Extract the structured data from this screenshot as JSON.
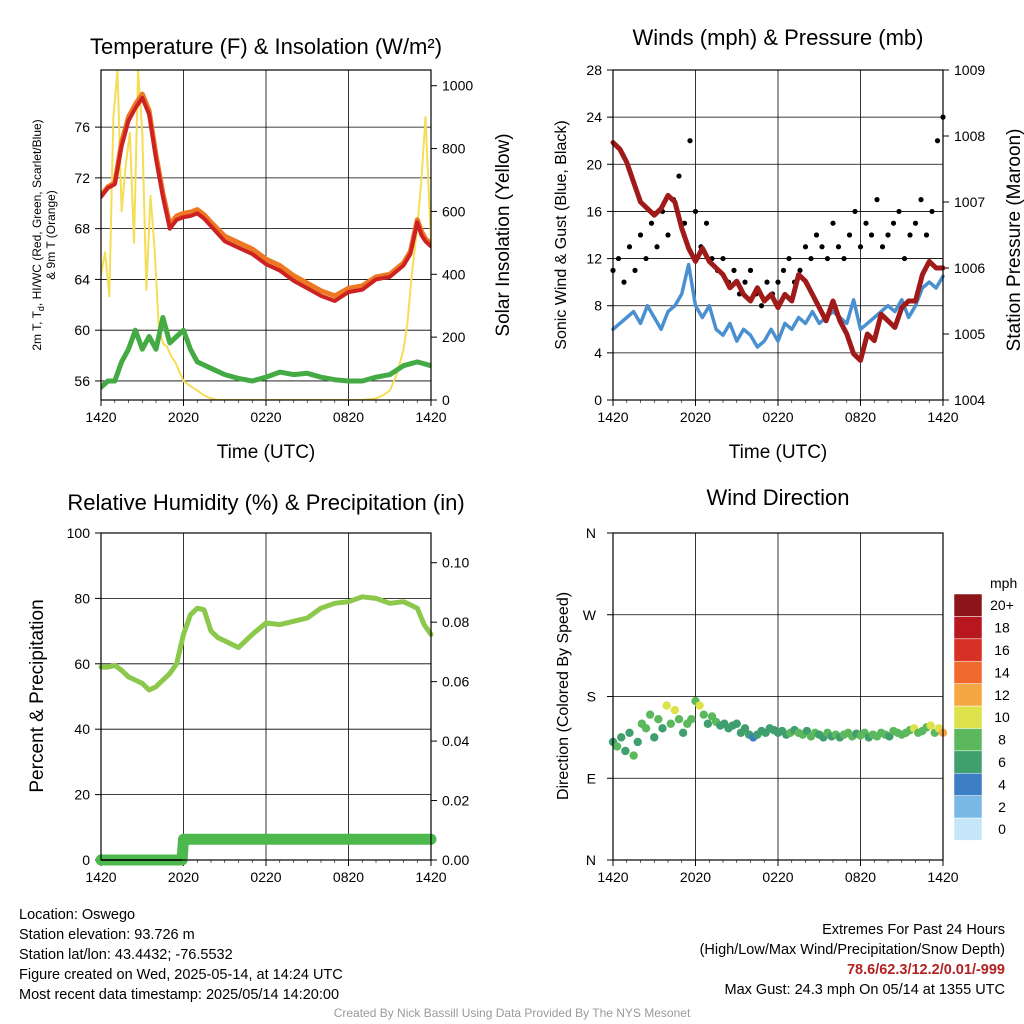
{
  "chart_data": [
    {
      "type": "line",
      "title": "Temperature (F) & Insolation (W/m²)",
      "xlabel": "Time (UTC)",
      "ylabel": "2m T, Td, HI/WC (Red, Green, Scarlet/Blue) & 9m T (Orange)",
      "ylabel_line1": "2m T, T",
      "ylabel_sub": "d",
      "ylabel_line1b": ", HI/WC (Red, Green, Scarlet/Blue)",
      "ylabel_line2": "& 9m T (Orange)",
      "y2label": "Solar Insolation (Yellow)",
      "x_ticks": [
        "1420",
        "2020",
        "0220",
        "0820",
        "1420"
      ],
      "ylim": [
        54.5,
        80.5
      ],
      "y_ticks": [
        56,
        60,
        64,
        68,
        72,
        76
      ],
      "y2lim": [
        0,
        1050
      ],
      "y2_ticks": [
        0,
        200,
        400,
        600,
        800,
        1000
      ],
      "series": [
        {
          "color": "#cc2222",
          "x": [
            0,
            0.5,
            1,
            1.5,
            2,
            2.5,
            3,
            3.5,
            4,
            4.5,
            5,
            5.5,
            6,
            6.5,
            7,
            7.5,
            8,
            9,
            10,
            11,
            12,
            13,
            14,
            15,
            16,
            17,
            18,
            19,
            20,
            21,
            22,
            22.5,
            23,
            23.3,
            23.6,
            24
          ],
          "values": [
            70.5,
            71.2,
            71.5,
            74.5,
            76.5,
            77.5,
            78.3,
            77,
            73.5,
            70.5,
            68,
            68.7,
            68.9,
            69,
            69.2,
            68.8,
            68.2,
            67,
            66.5,
            66,
            65.2,
            64.7,
            63.9,
            63.3,
            62.7,
            62.3,
            63,
            63.2,
            64,
            64.2,
            65.1,
            66,
            68.5,
            67.5,
            67,
            66.6
          ]
        },
        {
          "color": "#ee7722",
          "x": [
            0,
            0.5,
            1,
            1.5,
            2,
            2.5,
            3,
            3.5,
            4,
            4.5,
            5,
            5.5,
            6,
            6.5,
            7,
            7.5,
            8,
            9,
            10,
            11,
            12,
            13,
            14,
            15,
            16,
            17,
            18,
            19,
            20,
            21,
            22,
            22.5,
            23,
            23.3,
            23.6,
            24
          ],
          "values": [
            70.6,
            71.3,
            71.6,
            74.8,
            76.8,
            77.8,
            78.6,
            77.3,
            73.8,
            70.8,
            68.3,
            69,
            69.2,
            69.3,
            69.5,
            69.1,
            68.5,
            67.4,
            66.9,
            66.4,
            65.6,
            65.1,
            64.3,
            63.7,
            63.1,
            62.7,
            63.3,
            63.5,
            64.2,
            64.4,
            65.3,
            66.2,
            68.7,
            67.8,
            67.2,
            66.8
          ]
        },
        {
          "color": "#44aa44",
          "x": [
            0,
            0.5,
            1,
            1.5,
            2,
            2.5,
            3,
            3.5,
            4,
            4.5,
            5,
            5.5,
            6,
            6.5,
            7,
            8,
            9,
            10,
            11,
            12,
            13,
            14,
            15,
            16,
            17,
            18,
            19,
            20,
            21,
            22,
            23,
            24
          ],
          "values": [
            55.5,
            56,
            56,
            57.5,
            58.5,
            60,
            58.5,
            59.5,
            58.5,
            61,
            59,
            59.5,
            60,
            58.5,
            57.5,
            57,
            56.5,
            56.2,
            56,
            56.3,
            56.7,
            56.5,
            56.6,
            56.3,
            56.1,
            56,
            56,
            56.3,
            56.5,
            57.2,
            57.5,
            57.2
          ]
        },
        {
          "color": "#f5dd55",
          "x": [
            0,
            0.3,
            0.6,
            0.9,
            1.2,
            1.5,
            1.8,
            2.1,
            2.4,
            2.7,
            3.0,
            3.3,
            3.6,
            3.9,
            4.2,
            4.5,
            4.8,
            5.1,
            5.4,
            5.7,
            6.0,
            6.5,
            7,
            7.5,
            8,
            8.5,
            9,
            10,
            11,
            12,
            13,
            14,
            15,
            16,
            17,
            18,
            19,
            20,
            20.5,
            21,
            21.5,
            22,
            22.3,
            22.6,
            23,
            23.3,
            23.6,
            24
          ],
          "values": [
            400,
            470,
            330,
            900,
            1050,
            600,
            750,
            850,
            500,
            1050,
            850,
            350,
            650,
            480,
            230,
            180,
            170,
            140,
            120,
            90,
            60,
            45,
            30,
            15,
            5,
            0,
            0,
            0,
            0,
            0,
            0,
            0,
            0,
            0,
            0,
            0,
            0,
            5,
            15,
            30,
            80,
            160,
            250,
            400,
            550,
            700,
            900,
            500
          ]
        }
      ]
    },
    {
      "type": "scatter",
      "title": "Winds (mph) & Pressure (mb)",
      "xlabel": "Time (UTC)",
      "ylabel": "Sonic Wind & Gust (Blue, Black)",
      "y2label": "Station Pressure (Maroon)",
      "x_ticks": [
        "1420",
        "2020",
        "0220",
        "0820",
        "1420"
      ],
      "ylim": [
        0,
        28
      ],
      "y_ticks": [
        0,
        4,
        8,
        12,
        16,
        20,
        24,
        28
      ],
      "y2lim": [
        1004,
        1009
      ],
      "y2_ticks": [
        1004,
        1005,
        1006,
        1007,
        1008,
        1009
      ],
      "wind_series": {
        "color": "#4a90d0",
        "x": [
          0,
          0.5,
          1,
          1.5,
          2,
          2.5,
          3,
          3.5,
          4,
          4.5,
          5,
          5.5,
          6,
          6.5,
          7,
          7.5,
          8,
          8.5,
          9,
          9.5,
          10,
          10.5,
          11,
          11.5,
          12,
          12.5,
          13,
          13.5,
          14,
          14.5,
          15,
          15.5,
          16,
          16.5,
          17,
          17.5,
          18,
          18.5,
          19,
          19.5,
          20,
          20.5,
          21,
          21.5,
          22,
          22.5,
          23,
          23.5,
          24
        ],
        "values": [
          6,
          6.5,
          7,
          7.5,
          6.5,
          8,
          7,
          6,
          7.5,
          8,
          9,
          11.5,
          8,
          7,
          8,
          6,
          5.5,
          6.5,
          5,
          6,
          5.5,
          4.5,
          5,
          6,
          5,
          6.5,
          6,
          7,
          6.5,
          7.5,
          6.5,
          7,
          7.5,
          7,
          6.5,
          8.5,
          6,
          6.5,
          7,
          7.5,
          8,
          7.5,
          8.5,
          7,
          8,
          9.5,
          10,
          9.5,
          10.5
        ]
      },
      "gust_series": {
        "color": "#000000",
        "x": [
          0,
          0.4,
          0.8,
          1.2,
          1.6,
          2,
          2.4,
          2.8,
          3.2,
          3.6,
          4,
          4.4,
          4.8,
          5.2,
          5.6,
          6,
          6.4,
          6.8,
          7.2,
          7.6,
          8,
          8.4,
          8.8,
          9.2,
          9.6,
          10,
          10.4,
          10.8,
          11.2,
          11.6,
          12,
          12.4,
          12.8,
          13.2,
          13.6,
          14,
          14.4,
          14.8,
          15.2,
          15.6,
          16,
          16.4,
          16.8,
          17.2,
          17.6,
          18,
          18.4,
          18.8,
          19.2,
          19.6,
          20,
          20.4,
          20.8,
          21.2,
          21.6,
          22,
          22.4,
          22.8,
          23.2,
          23.6,
          24
        ],
        "values": [
          11,
          12,
          10,
          13,
          11,
          14,
          12,
          15,
          13,
          16,
          14,
          17,
          19,
          15,
          22,
          16,
          13,
          15,
          12,
          11,
          12,
          10,
          11,
          9,
          10,
          11,
          9,
          8,
          10,
          9,
          10,
          11,
          12,
          10,
          11,
          13,
          12,
          14,
          13,
          12,
          15,
          13,
          12,
          14,
          16,
          13,
          15,
          14,
          17,
          13,
          14,
          15,
          16,
          12,
          14,
          15,
          17,
          14,
          16,
          22,
          24
        ]
      },
      "pressure_series": {
        "color": "#a01a1a",
        "x": [
          0,
          0.5,
          1,
          1.5,
          2,
          2.5,
          3,
          3.5,
          4,
          4.5,
          5,
          5.5,
          6,
          6.5,
          7,
          7.5,
          8,
          8.5,
          9,
          9.5,
          10,
          10.5,
          11,
          11.5,
          12,
          12.5,
          13,
          13.5,
          14,
          14.5,
          15,
          15.5,
          16,
          16.5,
          17,
          17.5,
          18,
          18.5,
          19,
          19.5,
          20,
          20.5,
          21,
          21.5,
          22,
          22.5,
          23,
          23.5,
          24
        ],
        "values": [
          1007.9,
          1007.8,
          1007.6,
          1007.3,
          1007,
          1006.9,
          1006.8,
          1006.9,
          1007.1,
          1007.0,
          1006.6,
          1006.3,
          1006.1,
          1006.3,
          1006.1,
          1006.0,
          1005.9,
          1005.7,
          1005.8,
          1005.6,
          1005.5,
          1005.7,
          1005.5,
          1005.6,
          1005.4,
          1005.6,
          1005.5,
          1005.9,
          1005.8,
          1005.6,
          1005.4,
          1005.2,
          1005.5,
          1005.2,
          1005.0,
          1004.7,
          1004.6,
          1005.0,
          1004.9,
          1005.3,
          1005.2,
          1005.1,
          1005.4,
          1005.5,
          1005.5,
          1005.9,
          1006.1,
          1006.0,
          1006.0
        ]
      }
    },
    {
      "type": "line",
      "title": "Relative Humidity (%) & Precipitation (in)",
      "ylabel": "Percent & Precipitation",
      "x_ticks": [
        "1420",
        "2020",
        "0220",
        "0820",
        "1420"
      ],
      "ylim": [
        0,
        100
      ],
      "y_ticks": [
        0,
        20,
        40,
        60,
        80,
        100
      ],
      "y2lim": [
        0,
        0.11
      ],
      "y2_ticks": [
        "0.00",
        "0.02",
        "0.04",
        "0.06",
        "0.08",
        "0.10"
      ],
      "series": [
        {
          "color": "#8cc84b",
          "x": [
            0,
            0.5,
            1,
            1.5,
            2,
            2.5,
            3,
            3.5,
            4,
            4.5,
            5,
            5.5,
            6,
            6.5,
            7,
            7.5,
            8,
            8.5,
            9,
            9.5,
            10,
            11,
            12,
            13,
            14,
            15,
            16,
            17,
            18,
            19,
            20,
            21,
            22,
            22.5,
            23,
            23.5,
            24
          ],
          "values": [
            59,
            59,
            59.5,
            58,
            56,
            55,
            54,
            52,
            53,
            55,
            57,
            60,
            69,
            75,
            77,
            76.5,
            70,
            68,
            67,
            66,
            65,
            69,
            72.5,
            72,
            73,
            74,
            77,
            78.5,
            79,
            80.5,
            80,
            78.5,
            79,
            78,
            77,
            72,
            69
          ]
        },
        {
          "color": "#4db84d",
          "x": [
            0,
            5.9,
            6.0,
            24
          ],
          "values": [
            0,
            0,
            0.007,
            0.007
          ]
        }
      ]
    },
    {
      "type": "scatter",
      "title": "Wind Direction",
      "ylabel": "Direction (Colored By Speed)",
      "x_ticks": [
        "1420",
        "2020",
        "0220",
        "0820",
        "1420"
      ],
      "y_ticks": [
        "N",
        "E",
        "S",
        "W",
        "N"
      ],
      "ylim": [
        0,
        360
      ],
      "colorbar": {
        "unit": "mph",
        "labels": [
          "0",
          "2",
          "4",
          "6",
          "8",
          "10",
          "12",
          "14",
          "16",
          "18",
          "20+"
        ],
        "colors": [
          "#c4e6f8",
          "#7ab8e6",
          "#3d7fc4",
          "#3f9f6e",
          "#5cb85c",
          "#dde14a",
          "#f4a742",
          "#ef6a2c",
          "#d73027",
          "#b8171f",
          "#8b1518"
        ]
      },
      "x": [
        0,
        0.3,
        0.6,
        0.9,
        1.2,
        1.5,
        1.8,
        2.1,
        2.4,
        2.7,
        3,
        3.3,
        3.6,
        3.9,
        4.2,
        4.5,
        4.8,
        5.1,
        5.4,
        5.7,
        6,
        6.3,
        6.6,
        6.9,
        7.2,
        7.5,
        7.8,
        8.1,
        8.4,
        8.7,
        9,
        9.3,
        9.6,
        9.9,
        10.2,
        10.5,
        10.8,
        11.1,
        11.4,
        11.7,
        12,
        12.3,
        12.6,
        12.9,
        13.2,
        13.5,
        13.8,
        14.1,
        14.4,
        14.7,
        15,
        15.3,
        15.6,
        15.9,
        16.2,
        16.5,
        16.8,
        17.1,
        17.4,
        17.7,
        18,
        18.3,
        18.6,
        18.9,
        19.2,
        19.5,
        19.8,
        20.1,
        20.4,
        20.7,
        21,
        21.3,
        21.6,
        21.9,
        22.2,
        22.5,
        22.8,
        23.1,
        23.4,
        23.7,
        24
      ],
      "dir": [
        130,
        125,
        135,
        120,
        140,
        115,
        130,
        150,
        145,
        160,
        135,
        155,
        145,
        170,
        150,
        165,
        155,
        140,
        150,
        155,
        175,
        170,
        160,
        150,
        158,
        152,
        148,
        150,
        145,
        148,
        150,
        140,
        145,
        138,
        135,
        138,
        142,
        140,
        145,
        143,
        140,
        142,
        138,
        140,
        143,
        140,
        138,
        142,
        136,
        140,
        138,
        135,
        140,
        136,
        138,
        135,
        138,
        140,
        136,
        139,
        137,
        140,
        135,
        138,
        136,
        140,
        138,
        136,
        142,
        140,
        138,
        140,
        143,
        145,
        140,
        142,
        146,
        148,
        140,
        145,
        140
      ],
      "speed": [
        6,
        7,
        5,
        6,
        6,
        7,
        6,
        8,
        7,
        8,
        6,
        8,
        6,
        10,
        7,
        9,
        8,
        6,
        7,
        7,
        8,
        9,
        7,
        6,
        7,
        7,
        6,
        6,
        5,
        6,
        6,
        5,
        6,
        5,
        4,
        5,
        6,
        5,
        6,
        6,
        5,
        6,
        6,
        7,
        6,
        7,
        7,
        6,
        7,
        7,
        6,
        6,
        7,
        6,
        7,
        6,
        7,
        8,
        7,
        6,
        7,
        7,
        6,
        7,
        7,
        8,
        7,
        6,
        8,
        7,
        7,
        8,
        8,
        9,
        7,
        8,
        8,
        9,
        8,
        10,
        12
      ]
    }
  ],
  "info": {
    "location": "Location: Oswego",
    "elevation": "Station elevation: 93.726 m",
    "latlon": "Station lat/lon: 43.4432; -76.5532",
    "created": "Figure created on Wed, 2025-05-14, at 14:24 UTC",
    "recent": "Most recent data timestamp: 2025/05/14 14:20:00"
  },
  "extremes": {
    "title": "Extremes For Past 24 Hours",
    "subtitle": "(High/Low/Max Wind/Precipitation/Snow Depth)",
    "values": "78.6/62.3/12.2/0.01/-999",
    "gust": "Max Gust: 24.3 mph On 05/14 at 1355 UTC"
  },
  "credit": "Created By Nick Bassill Using Data Provided By The NYS Mesonet"
}
